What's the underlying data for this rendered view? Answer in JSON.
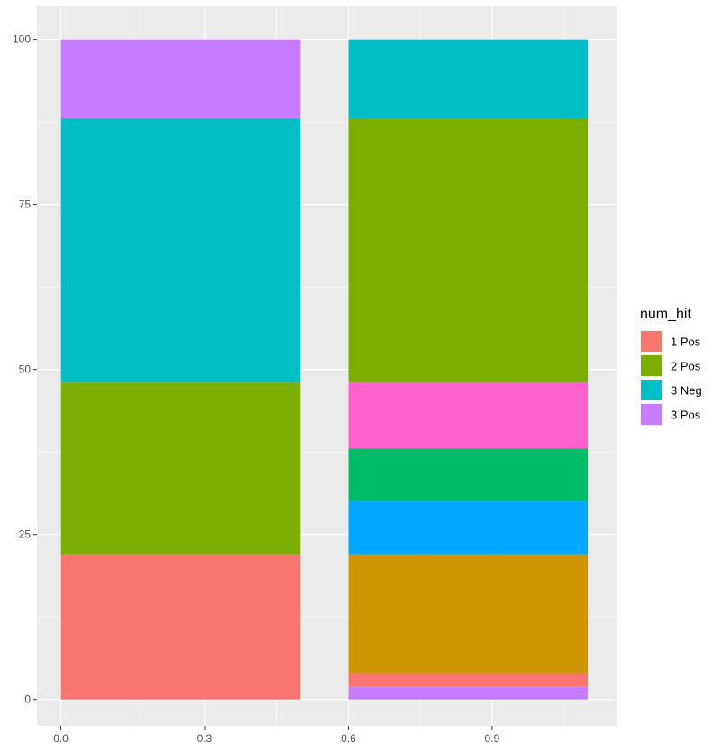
{
  "chart_data": {
    "type": "bar",
    "stacked": true,
    "title": "",
    "xlabel": "",
    "ylabel": "",
    "xlim": [
      -0.05,
      1.16
    ],
    "ylim": [
      -4,
      105
    ],
    "x_ticks": [
      0.0,
      0.3,
      0.6,
      0.9
    ],
    "x_tick_labels": [
      "0.0",
      "0.3",
      "0.6",
      "0.9"
    ],
    "y_ticks": [
      0,
      25,
      50,
      75,
      100
    ],
    "y_tick_labels": [
      "0",
      "25",
      "50",
      "75",
      "100"
    ],
    "grid": true,
    "legend": {
      "title": "num_hit",
      "placement": "right",
      "entries": [
        {
          "label": "1 Pos",
          "color": "#F8766D"
        },
        {
          "label": "2 Pos",
          "color": "#7CAE00"
        },
        {
          "label": "3 Neg",
          "color": "#00BFC4"
        },
        {
          "label": "3 Pos",
          "color": "#C77CFF"
        }
      ]
    },
    "bars": [
      {
        "xmin": 0.0,
        "xmax": 0.5,
        "segments": [
          {
            "ymin": 0,
            "ymax": 22,
            "color": "#F8766D"
          },
          {
            "ymin": 22,
            "ymax": 48,
            "color": "#7CAE00"
          },
          {
            "ymin": 48,
            "ymax": 88,
            "color": "#00BFC4"
          },
          {
            "ymin": 88,
            "ymax": 100,
            "color": "#C77CFF"
          }
        ]
      },
      {
        "xmin": 0.6,
        "xmax": 1.1,
        "segments": [
          {
            "ymin": 0,
            "ymax": 2,
            "color": "#C77CFF"
          },
          {
            "ymin": 2,
            "ymax": 4,
            "color": "#F8766D"
          },
          {
            "ymin": 4,
            "ymax": 22,
            "color": "#CD9600"
          },
          {
            "ymin": 22,
            "ymax": 30,
            "color": "#00A9FF"
          },
          {
            "ymin": 30,
            "ymax": 38,
            "color": "#00BE67"
          },
          {
            "ymin": 38,
            "ymax": 48,
            "color": "#FF61CC"
          },
          {
            "ymin": 48,
            "ymax": 88,
            "color": "#7CAE00"
          },
          {
            "ymin": 88,
            "ymax": 100,
            "color": "#00BFC4"
          }
        ]
      }
    ],
    "panel_background": "#EBEBEB",
    "grid_color": "#FFFFFF"
  }
}
